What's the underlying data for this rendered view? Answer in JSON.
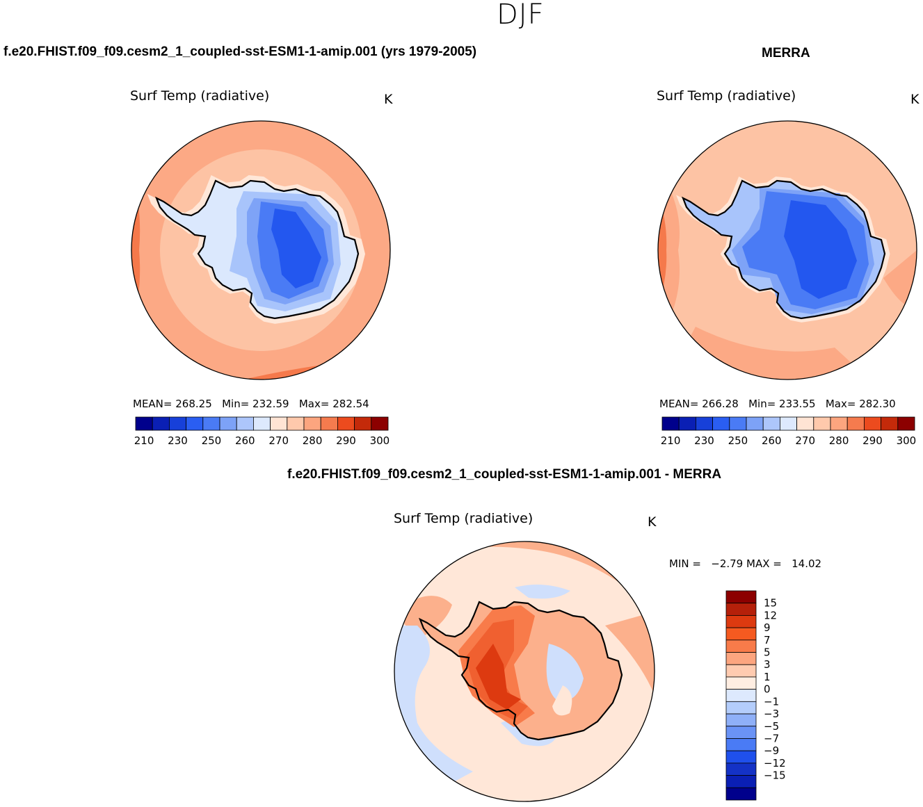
{
  "figure_title": "DJF",
  "panels": {
    "model": {
      "title": "f.e20.FHIST.f09_f09.cesm2_1_coupled-sst-ESM1-1-amip.001 (yrs 1979-2005)",
      "variable": "Surf Temp (radiative)",
      "units": "K",
      "mean_label": "MEAN=",
      "mean": "268.25",
      "min_label": "Min=",
      "min": "232.59",
      "max_label": "Max=",
      "max": "282.54"
    },
    "obs": {
      "title": "MERRA",
      "variable": "Surf Temp (radiative)",
      "units": "K",
      "mean_label": "MEAN=",
      "mean": "266.28",
      "min_label": "Min=",
      "min": "233.55",
      "max_label": "Max=",
      "max": "282.30"
    },
    "diff": {
      "title": "f.e20.FHIST.f09_f09.cesm2_1_coupled-sst-ESM1-1-amip.001 - MERRA",
      "variable": "Surf Temp (radiative)",
      "units": "K",
      "min_label": "MIN =",
      "min": "−2.79",
      "max_label": "MAX =",
      "max": "14.02"
    }
  },
  "abs_colorbar": {
    "colors": [
      "#00008c",
      "#0a1fb4",
      "#1740d9",
      "#2a5ef2",
      "#4a7bf5",
      "#7da2f7",
      "#adc6fb",
      "#dde9fd",
      "#ffe4d4",
      "#ffc9ac",
      "#fca57f",
      "#f57b4e",
      "#ec4b1e",
      "#c42a0a",
      "#8c0000"
    ],
    "ticks": [
      "210",
      "230",
      "250",
      "260",
      "270",
      "280",
      "290",
      "300"
    ]
  },
  "diff_colorbar": {
    "colors": [
      "#8c0000",
      "#b5200a",
      "#dd3a10",
      "#f55a20",
      "#f87b4a",
      "#fca57f",
      "#ffcbb0",
      "#ffeee2",
      "#dde9fd",
      "#b4cdfb",
      "#8fb0f8",
      "#6a93f6",
      "#4a7bf5",
      "#1f50ec",
      "#1432c6",
      "#0a1fb4",
      "#00008c"
    ],
    "ticks": [
      "15",
      "12",
      "9",
      "7",
      "5",
      "3",
      "1",
      "0",
      "−1",
      "−3",
      "−5",
      "−7",
      "−9",
      "−12",
      "−15"
    ]
  },
  "map_colors": {
    "ocean_warm": "#fdc3a4",
    "ocean_warmer": "#fca985",
    "ocean_hot": "#f5794b",
    "coast_pale": "#ffe7d8",
    "ice_pale": "#dbe8fd",
    "ice_light": "#a8c4fb",
    "ice_mid": "#7ea3f7",
    "ice_blue": "#4a7bf5",
    "ice_deep": "#2357ef",
    "diff_bg": "#ffe7d8",
    "diff_pos": "#fcb08c",
    "diff_neg": "#cfdffc",
    "diff_hot": "#f06030",
    "diff_hotter": "#dd3a10",
    "coastline": "#000000"
  }
}
